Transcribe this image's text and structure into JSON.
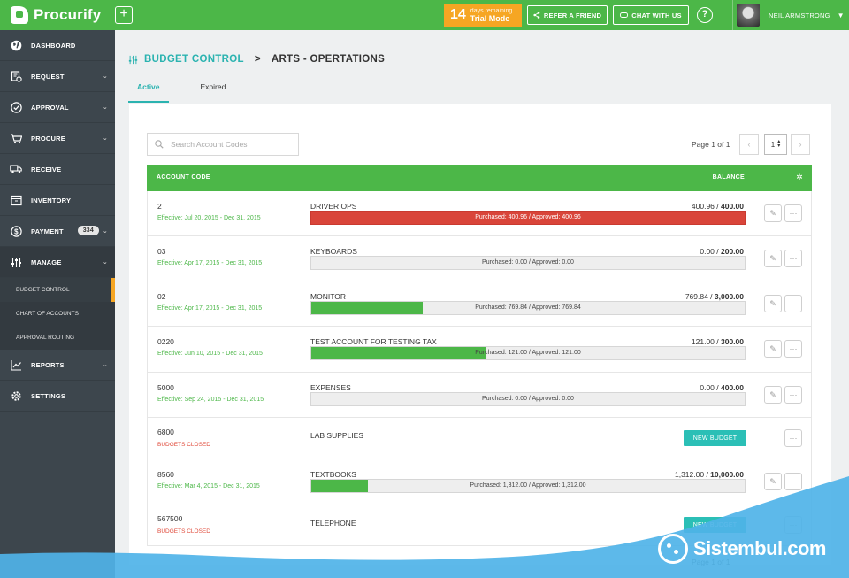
{
  "topbar": {
    "brand": "Procurify",
    "add_label": "+",
    "trial": {
      "days": "14",
      "days_caption": "days remaining",
      "mode": "Trial Mode"
    },
    "refer_label": "REFER A FRIEND",
    "chat_label": "CHAT WITH US",
    "help_label": "?",
    "user_name": "NEIL ARMSTRONG"
  },
  "sidebar": {
    "items": [
      {
        "label": "DASHBOARD",
        "icon": "globe-icon"
      },
      {
        "label": "REQUEST",
        "icon": "request-icon"
      },
      {
        "label": "APPROVAL",
        "icon": "check-circle-icon"
      },
      {
        "label": "PROCURE",
        "icon": "cart-icon"
      },
      {
        "label": "RECEIVE",
        "icon": "truck-icon"
      },
      {
        "label": "INVENTORY",
        "icon": "box-icon"
      },
      {
        "label": "PAYMENT",
        "icon": "dollar-icon",
        "badge": "334"
      },
      {
        "label": "MANAGE",
        "icon": "sliders-icon"
      },
      {
        "label": "REPORTS",
        "icon": "chart-icon"
      },
      {
        "label": "SETTINGS",
        "icon": "gear-icon"
      }
    ],
    "manage_sub": [
      "BUDGET CONTROL",
      "CHART OF ACCOUNTS",
      "APPROVAL ROUTING"
    ]
  },
  "breadcrumb": {
    "parent": "BUDGET CONTROL",
    "separator": ">",
    "current": "ARTS - OPERTATIONS"
  },
  "tabs": [
    "Active",
    "Expired"
  ],
  "search": {
    "placeholder": "Search Account Codes"
  },
  "pager": {
    "text": "Page 1 of 1",
    "page": "1"
  },
  "table": {
    "col_account": "ACCOUNT CODE",
    "col_balance": "BALANCE",
    "new_budget_label": "NEW BUDGET",
    "rows": [
      {
        "code": "2",
        "effective": "Effective: Jul 20, 2015 - Dec 31, 2015",
        "name": "DRIVER OPS",
        "spent": "400.96",
        "slash": " / ",
        "total": "400.00",
        "bar_text": "Purchased: 400.96 / Approved: 400.96",
        "fill": 1.0,
        "over": true
      },
      {
        "code": "03",
        "effective": "Effective: Apr 17, 2015 - Dec 31, 2015",
        "name": "KEYBOARDS",
        "spent": "0.00",
        "slash": " / ",
        "total": "200.00",
        "bar_text": "Purchased: 0.00 / Approved: 0.00",
        "fill": 0.0
      },
      {
        "code": "02",
        "effective": "Effective: Apr 17, 2015 - Dec 31, 2015",
        "name": "MONITOR",
        "spent": "769.84",
        "slash": " / ",
        "total": "3,000.00",
        "bar_text": "Purchased: 769.84 / Approved: 769.84",
        "fill": 0.2566
      },
      {
        "code": "0220",
        "effective": "Effective: Jun 10, 2015 - Dec 31, 2015",
        "name": "TEST ACCOUNT FOR TESTING TAX",
        "spent": "121.00",
        "slash": " / ",
        "total": "300.00",
        "bar_text": "Purchased: 121.00 / Approved: 121.00",
        "fill": 0.4033
      },
      {
        "code": "5000",
        "effective": "Effective: Sep 24, 2015 - Dec 31, 2015",
        "name": "EXPENSES",
        "spent": "0.00",
        "slash": " / ",
        "total": "400.00",
        "bar_text": "Purchased: 0.00 / Approved: 0.00",
        "fill": 0.0
      },
      {
        "code": "6800",
        "status": "BUDGETS CLOSED",
        "name": "LAB SUPPLIES"
      },
      {
        "code": "8560",
        "effective": "Effective: Mar 4, 2015 - Dec 31, 2015",
        "name": "TEXTBOOKS",
        "spent": "1,312.00",
        "slash": " / ",
        "total": "10,000.00",
        "bar_text": "Purchased: 1,312.00 / Approved: 1,312.00",
        "fill": 0.1312
      },
      {
        "code": "567500",
        "status": "BUDGETS CLOSED",
        "name": "TELEPHONE"
      }
    ]
  },
  "watermark": "Sistembul.com",
  "colors": {
    "brand_green": "#4cb748",
    "teal": "#2bb3b0",
    "orange": "#f6a623",
    "red": "#d9453a",
    "sidebar": "#3d464d",
    "wave": "#4fb3e8"
  }
}
